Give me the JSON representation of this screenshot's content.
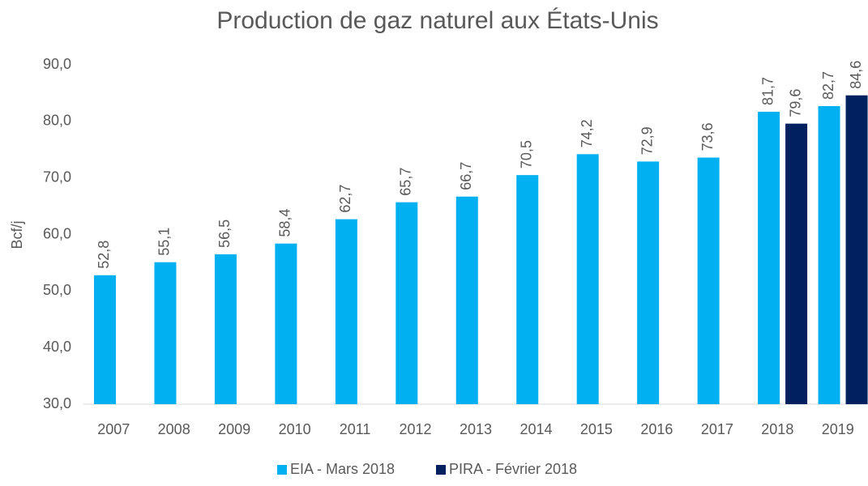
{
  "chart_data": {
    "type": "bar",
    "title": "Production de gaz naturel aux États-Unis",
    "y_label": "Bcf/j",
    "categories": [
      "2007",
      "2008",
      "2009",
      "2010",
      "2011",
      "2012",
      "2013",
      "2014",
      "2015",
      "2016",
      "2017",
      "2018",
      "2019"
    ],
    "series": [
      {
        "name": "EIA - Mars 2018",
        "color": "#00b0f0",
        "values": [
          52.8,
          55.1,
          56.5,
          58.4,
          62.7,
          65.7,
          66.7,
          70.5,
          74.2,
          72.9,
          73.6,
          81.7,
          82.7
        ],
        "value_labels": [
          "52,8",
          "55,1",
          "56,5",
          "58,4",
          "62,7",
          "65,7",
          "66,7",
          "70,5",
          "74,2",
          "72,9",
          "73,6",
          "81,7",
          "82,7"
        ]
      },
      {
        "name": "PIRA - Février 2018",
        "color": "#002060",
        "values": [
          null,
          null,
          null,
          null,
          null,
          null,
          null,
          null,
          null,
          null,
          null,
          79.6,
          84.6
        ],
        "value_labels": [
          null,
          null,
          null,
          null,
          null,
          null,
          null,
          null,
          null,
          null,
          null,
          "79,6",
          "84,6"
        ]
      }
    ],
    "ylim": [
      30,
      90
    ],
    "yticks": [
      {
        "value": 30,
        "label": "30,0"
      },
      {
        "value": 40,
        "label": "40,0"
      },
      {
        "value": 50,
        "label": "50,0"
      },
      {
        "value": 60,
        "label": "60,0"
      },
      {
        "value": 70,
        "label": "70,0"
      },
      {
        "value": 80,
        "label": "80,0"
      },
      {
        "value": 90,
        "label": "90,0"
      }
    ],
    "grid": false,
    "legend": "bottom"
  }
}
